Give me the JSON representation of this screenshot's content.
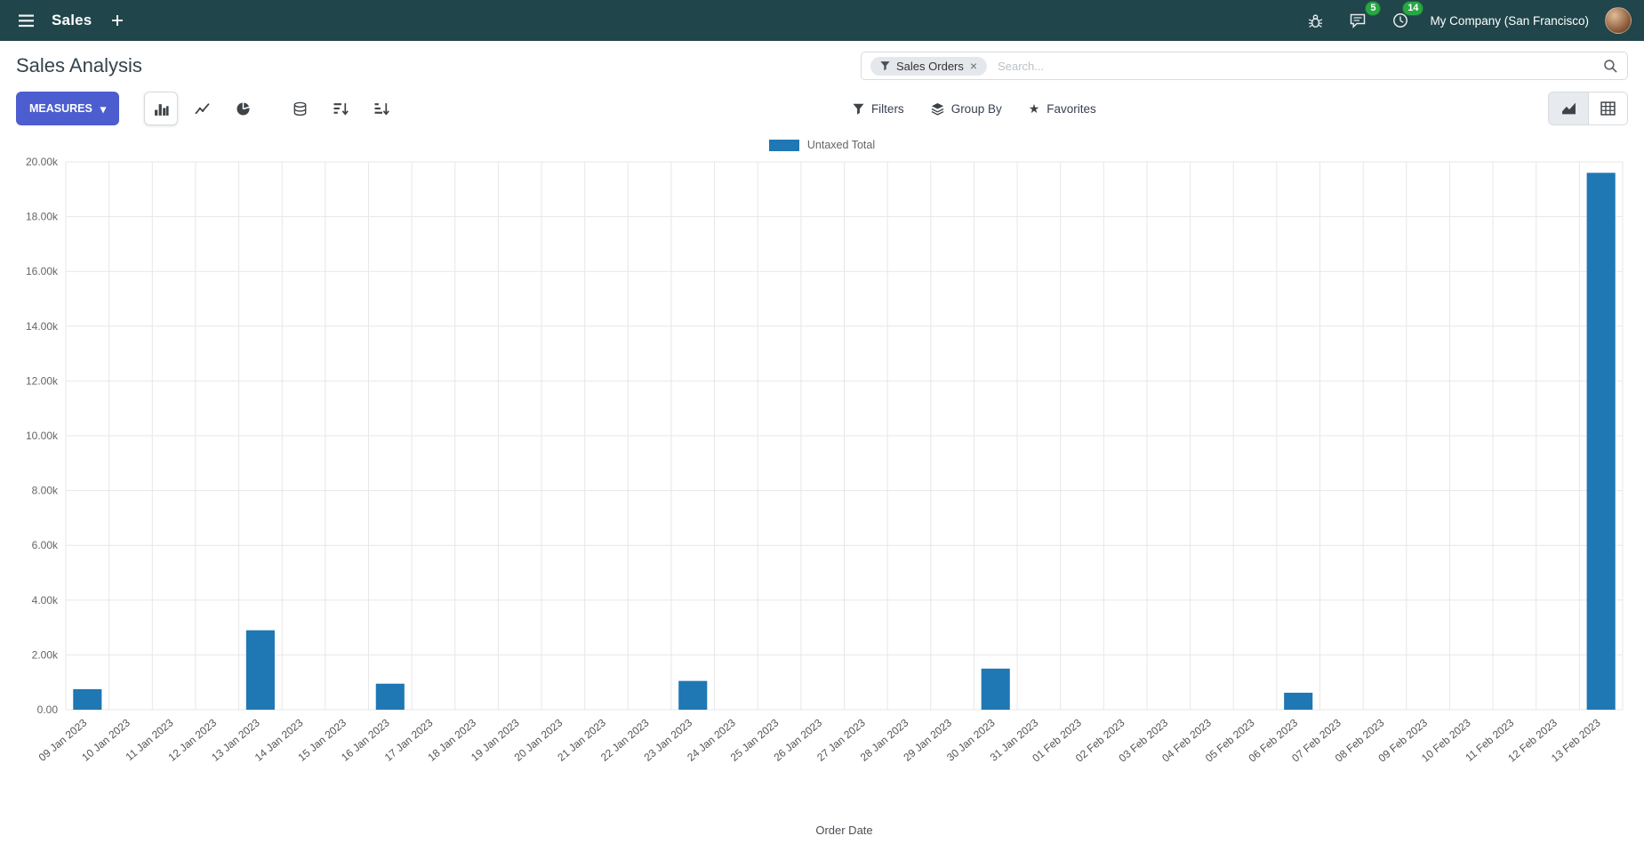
{
  "colors": {
    "navbar": "#20454b",
    "primary_button": "#4c5ecf",
    "badge": "#28a745",
    "bar": "#1f77b4"
  },
  "navbar": {
    "app_name": "Sales",
    "messages_badge": "5",
    "activities_badge": "14",
    "company": "My Company (San Francisco)"
  },
  "control_panel": {
    "title": "Sales Analysis",
    "measures_label": "MEASURES",
    "search": {
      "facet": "Sales Orders",
      "placeholder": "Search..."
    },
    "filters_label": "Filters",
    "group_by_label": "Group By",
    "favorites_label": "Favorites"
  },
  "icons": {
    "caret_down": "▾",
    "close": "×",
    "star": "★"
  },
  "chart_data": {
    "type": "bar",
    "title": "",
    "xlabel": "Order Date",
    "ylabel": "",
    "ylim": [
      0,
      20000
    ],
    "ytick_step": 2000,
    "ytick_labels": [
      "0.00",
      "2.00k",
      "4.00k",
      "6.00k",
      "8.00k",
      "10.00k",
      "12.00k",
      "14.00k",
      "16.00k",
      "18.00k",
      "20.00k"
    ],
    "grid": true,
    "legend_position": "top",
    "color": "#1f77b4",
    "categories": [
      "09 Jan 2023",
      "10 Jan 2023",
      "11 Jan 2023",
      "12 Jan 2023",
      "13 Jan 2023",
      "14 Jan 2023",
      "15 Jan 2023",
      "16 Jan 2023",
      "17 Jan 2023",
      "18 Jan 2023",
      "19 Jan 2023",
      "20 Jan 2023",
      "21 Jan 2023",
      "22 Jan 2023",
      "23 Jan 2023",
      "24 Jan 2023",
      "25 Jan 2023",
      "26 Jan 2023",
      "27 Jan 2023",
      "28 Jan 2023",
      "29 Jan 2023",
      "30 Jan 2023",
      "31 Jan 2023",
      "01 Feb 2023",
      "02 Feb 2023",
      "03 Feb 2023",
      "04 Feb 2023",
      "05 Feb 2023",
      "06 Feb 2023",
      "07 Feb 2023",
      "08 Feb 2023",
      "09 Feb 2023",
      "10 Feb 2023",
      "11 Feb 2023",
      "12 Feb 2023",
      "13 Feb 2023"
    ],
    "series": [
      {
        "name": "Untaxed Total",
        "values": [
          750,
          0,
          0,
          0,
          2900,
          0,
          0,
          950,
          0,
          0,
          0,
          0,
          0,
          0,
          1050,
          0,
          0,
          0,
          0,
          0,
          0,
          1500,
          0,
          0,
          0,
          0,
          0,
          0,
          620,
          0,
          0,
          0,
          0,
          0,
          0,
          19600
        ]
      }
    ]
  }
}
